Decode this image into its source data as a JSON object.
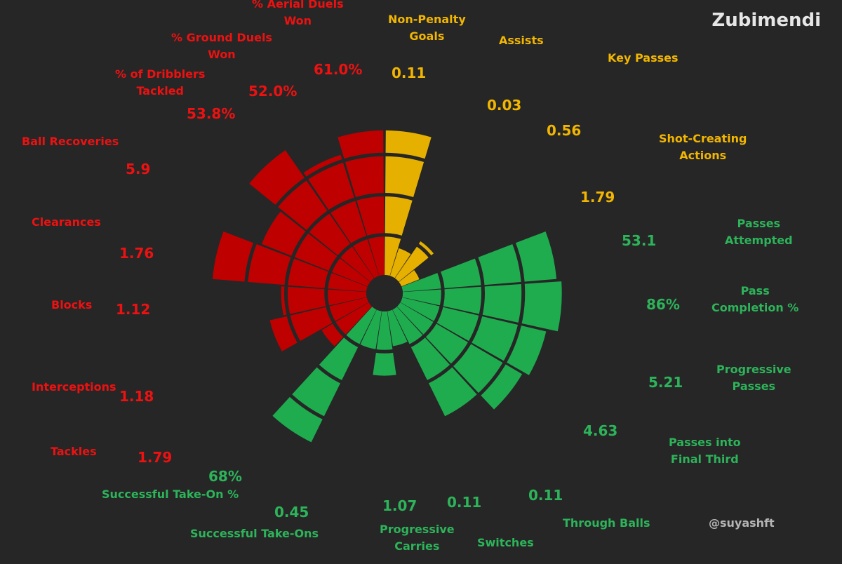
{
  "title": "Zubimendi",
  "credit": "@suyashft",
  "colors": {
    "background": "#262626",
    "attacking": "#e6b000",
    "possession": "#1fac4f",
    "defending": "#bf0000",
    "guide": "#262626"
  },
  "chart_data": {
    "type": "polar-bar",
    "percentile_scale": [
      0,
      100
    ],
    "guide_rings": [
      25,
      50,
      75
    ],
    "groups": [
      {
        "name": "attacking",
        "color": "#e6b000",
        "label_color": "#f2b600"
      },
      {
        "name": "possession",
        "color": "#1fac4f",
        "label_color": "#2db45a"
      },
      {
        "name": "defending",
        "color": "#bf0000",
        "label_color": "#ee1111"
      }
    ],
    "metrics": [
      {
        "label": "Non-Penalty\nGoals",
        "value": "0.11",
        "group": "attacking",
        "percentile": 90
      },
      {
        "label": "Assists",
        "value": "0.03",
        "group": "attacking",
        "percentile": 18
      },
      {
        "label": "Key Passes",
        "value": "0.56",
        "group": "attacking",
        "percentile": 28
      },
      {
        "label": "Shot-Creating\nActions",
        "value": "1.79",
        "group": "attacking",
        "percentile": 12
      },
      {
        "label": "Passes\nAttempted",
        "value": "53.1",
        "group": "possession",
        "percentile": 96
      },
      {
        "label": "Pass\nCompletion %",
        "value": "86%",
        "group": "possession",
        "percentile": 99
      },
      {
        "label": "Progressive\nPasses",
        "value": "5.21",
        "group": "possession",
        "percentile": 92
      },
      {
        "label": "Passes into\nFinal Third",
        "value": "4.63",
        "group": "possession",
        "percentile": 88
      },
      {
        "label": "Through Balls",
        "value": "0.11",
        "group": "possession",
        "percentile": 74
      },
      {
        "label": "Switches",
        "value": "0.11",
        "group": "possession",
        "percentile": 22
      },
      {
        "label": "Progressive\nCarries",
        "value": "1.07",
        "group": "possession",
        "percentile": 40
      },
      {
        "label": "Successful Take-Ons",
        "value": "0.45",
        "group": "possession",
        "percentile": 25
      },
      {
        "label": "Successful Take-On %",
        "value": "68%",
        "group": "possession",
        "percentile": 92
      },
      {
        "label": "Tackles",
        "value": "1.79",
        "group": "defending",
        "percentile": 34
      },
      {
        "label": "Interceptions",
        "value": "1.18",
        "group": "defending",
        "percentile": 62
      },
      {
        "label": "Blocks",
        "value": "1.12",
        "group": "defending",
        "percentile": 53
      },
      {
        "label": "Clearances",
        "value": "1.76",
        "group": "defending",
        "percentile": 96
      },
      {
        "label": "Ball Recoveries",
        "value": "5.9",
        "group": "defending",
        "percentile": 71
      },
      {
        "label": "% of Dribblers\nTackled",
        "value": "53.8%",
        "group": "defending",
        "percentile": 97
      },
      {
        "label": "% Ground Duels\nWon",
        "value": "52.0%",
        "group": "defending",
        "percentile": 79
      },
      {
        "label": "% Aerial Duels\nWon",
        "value": "61.0%",
        "group": "defending",
        "percentile": 90
      }
    ]
  }
}
